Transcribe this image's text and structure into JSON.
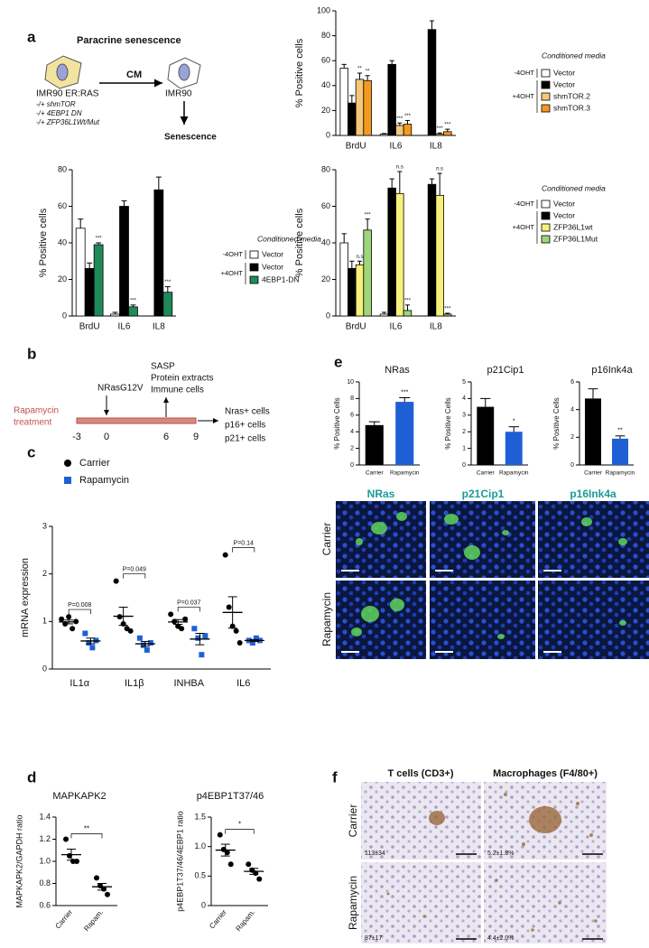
{
  "panel_labels": [
    "a",
    "b",
    "c",
    "d",
    "e",
    "f"
  ],
  "diagram_a": {
    "title": "Paracrine senescence",
    "source": "IMR90 ER:RAS",
    "conditions": [
      "-/+ shmTOR",
      "-/+ 4EBP1 DN",
      "-/+ ZFP36L1Wt/Mut"
    ],
    "arrow": "CM",
    "target": "IMR90",
    "outcome": "Senescence"
  },
  "timeline_b": {
    "treatment": [
      "Rapamycin",
      "treatment"
    ],
    "days": [
      -3,
      0,
      6,
      9
    ],
    "infection": "NRasG12V",
    "harvest": [
      "SASP",
      "Protein extracts",
      "Immune cells"
    ],
    "readouts": [
      "Nras+ cells",
      "p16+ cells",
      "p21+ cells"
    ]
  },
  "images_e": {
    "columns": [
      "NRas",
      "p21Cip1",
      "p16Ink4a"
    ],
    "rows": [
      "Carrier",
      "Rapamycin"
    ]
  },
  "images_f": {
    "columns": [
      "T cells (CD3+)",
      "Macrophages (F4/80+)"
    ],
    "rows": [
      "Carrier",
      "Rapamycin"
    ],
    "counts": [
      [
        "113±34",
        "5.2±1.8%"
      ],
      [
        "87±17",
        "4.4±2.0%"
      ]
    ]
  },
  "chart_data": [
    {
      "type": "bar",
      "ylabel": "% Positive cells",
      "categories": [
        "BrdU",
        "IL6",
        "IL8"
      ],
      "ylim": [
        0,
        100
      ],
      "yticks": [
        0,
        20,
        40,
        60,
        80,
        100
      ],
      "legend_title": "Conditioned media",
      "legend_groups": [
        "-4OHT",
        "+4OHT"
      ],
      "series": [
        {
          "name": "Vector",
          "color": "#ffffff",
          "values": [
            54,
            1,
            0
          ],
          "errors": [
            3,
            0.5,
            0
          ]
        },
        {
          "name": "Vector",
          "color": "#000000",
          "values": [
            26,
            57,
            85
          ],
          "errors": [
            6,
            3,
            7
          ]
        },
        {
          "name": "shmTOR.2",
          "color": "#f6c77a",
          "values": [
            45,
            8,
            1
          ],
          "errors": [
            5,
            2,
            1
          ],
          "significance": [
            "**",
            "***",
            "***"
          ]
        },
        {
          "name": "shmTOR.3",
          "color": "#f39a1e",
          "values": [
            44,
            9,
            3
          ],
          "errors": [
            4,
            3,
            2
          ],
          "significance": [
            "**",
            "***",
            "***"
          ]
        }
      ]
    },
    {
      "type": "bar",
      "ylabel": "% Positive cells",
      "categories": [
        "BrdU",
        "IL6",
        "IL8"
      ],
      "ylim": [
        0,
        80
      ],
      "yticks": [
        0,
        20,
        40,
        60,
        80
      ],
      "legend_title": "Conditioned media",
      "legend_groups": [
        "-4OHT",
        "+4OHT"
      ],
      "series": [
        {
          "name": "Vector",
          "color": "#ffffff",
          "values": [
            48,
            1,
            0
          ],
          "errors": [
            5,
            1,
            0
          ]
        },
        {
          "name": "Vector",
          "color": "#000000",
          "values": [
            26,
            60,
            69
          ],
          "errors": [
            3,
            3,
            7
          ]
        },
        {
          "name": "4EBP1-DN",
          "color": "#1e8a5a",
          "values": [
            39,
            5,
            13
          ],
          "errors": [
            1,
            1,
            3
          ],
          "significance": [
            "***",
            "***",
            "***"
          ]
        }
      ]
    },
    {
      "type": "bar",
      "ylabel": "% Positive cells",
      "categories": [
        "BrdU",
        "IL6",
        "IL8"
      ],
      "ylim": [
        0,
        80
      ],
      "yticks": [
        0,
        20,
        40,
        60,
        80
      ],
      "legend_title": "Conditioned media",
      "legend_groups": [
        "-4OHT",
        "+4OHT"
      ],
      "series": [
        {
          "name": "Vector",
          "color": "#ffffff",
          "values": [
            40,
            1,
            0
          ],
          "errors": [
            5,
            1,
            0
          ]
        },
        {
          "name": "Vector",
          "color": "#000000",
          "values": [
            26,
            70,
            72
          ],
          "errors": [
            4,
            5,
            3
          ]
        },
        {
          "name": "ZFP36L1wt",
          "color": "#f7f07a",
          "values": [
            28,
            67,
            66
          ],
          "errors": [
            2,
            12,
            12
          ],
          "significance": [
            "n.s",
            "n.s",
            "n.s"
          ]
        },
        {
          "name": "ZFP36L1Mut",
          "color": "#9ed67a",
          "values": [
            47,
            3,
            1
          ],
          "errors": [
            6,
            3,
            0.5
          ],
          "significance": [
            "***",
            "***",
            "***"
          ]
        }
      ]
    },
    {
      "type": "dot",
      "ylabel": "mRNA expression",
      "categories": [
        "IL1α",
        "IL1β",
        "INHBA",
        "IL6"
      ],
      "ylim": [
        0,
        3
      ],
      "yticks": [
        0,
        1,
        2,
        3
      ],
      "series": [
        {
          "name": "Carrier",
          "color": "#000000",
          "marker": "circle",
          "values": [
            [
              1.05,
              0.95,
              1.1,
              0.85,
              1.0
            ],
            [
              1.85,
              1.1,
              0.95,
              0.85,
              0.8
            ],
            [
              1.15,
              1.0,
              0.9,
              0.85,
              1.05
            ],
            [
              2.4,
              1.3,
              0.9,
              0.8,
              0.55
            ]
          ],
          "means": [
            0.99,
            1.11,
            0.99,
            1.19
          ],
          "sem": [
            0.04,
            0.19,
            0.05,
            0.33
          ]
        },
        {
          "name": "Rapamycin",
          "color": "#1f5fd6",
          "marker": "square",
          "values": [
            [
              0.75,
              0.55,
              0.45,
              0.6
            ],
            [
              0.65,
              0.5,
              0.4,
              0.55
            ],
            [
              0.85,
              0.65,
              0.3,
              0.7
            ],
            [
              0.6,
              0.55,
              0.65,
              0.6
            ]
          ],
          "means": [
            0.59,
            0.53,
            0.63,
            0.6
          ],
          "sem": [
            0.06,
            0.05,
            0.12,
            0.02
          ]
        }
      ],
      "annotations": [
        "P=0.008",
        "P=0.049",
        "P=0.037",
        "P=0.14"
      ]
    },
    {
      "type": "dot",
      "title": "MAPKAPK2",
      "ylabel": "MAPKAPK2/GAPDH ratio",
      "categories": [
        "Carrier",
        "Rapam."
      ],
      "ylim": [
        0.6,
        1.4
      ],
      "yticks": [
        0.6,
        0.8,
        {
          "value": 1,
          "label": "1.0"
        },
        1.2,
        1.4
      ],
      "series": [
        {
          "color": "#000000",
          "marker": "circle",
          "values": [
            [
              1.2,
              1.05,
              1.0,
              1.0
            ],
            [
              0.85,
              0.78,
              0.75,
              0.7
            ]
          ],
          "means": [
            1.06,
            0.77
          ],
          "sem": [
            0.05,
            0.03
          ]
        }
      ],
      "significance": "**"
    },
    {
      "type": "dot",
      "title": "p4EBP1T37/46",
      "ylabel": "p4EBP1T37/46/4EBP1 ratio",
      "categories": [
        "Carrier",
        "Rapam."
      ],
      "ylim": [
        0,
        1.5
      ],
      "yticks": [
        0,
        0.5,
        {
          "value": 1,
          "label": "1.0"
        },
        1.5
      ],
      "series": [
        {
          "color": "#000000",
          "marker": "circle",
          "values": [
            [
              1.2,
              0.95,
              0.9,
              0.7
            ],
            [
              0.7,
              0.6,
              0.55,
              0.45
            ]
          ],
          "means": [
            0.94,
            0.58
          ],
          "sem": [
            0.1,
            0.05
          ]
        }
      ],
      "significance": "*"
    },
    {
      "type": "bar",
      "title": "NRas",
      "ylabel": "% Positive Cells",
      "categories": [
        "Carrier",
        "Rapamycin"
      ],
      "ylim": [
        0,
        10
      ],
      "yticks": [
        0,
        2,
        4,
        6,
        8,
        10
      ],
      "values": [
        4.8,
        7.6
      ],
      "errors": [
        0.4,
        0.5
      ],
      "colors": [
        "#000000",
        "#1f5fd6"
      ],
      "significance": "***"
    },
    {
      "type": "bar",
      "title": "p21Cip1",
      "ylabel": "% Positive Cells",
      "categories": [
        "Carrier",
        "Rapamycin"
      ],
      "ylim": [
        0,
        5
      ],
      "yticks": [
        0,
        1,
        2,
        3,
        4,
        5
      ],
      "values": [
        3.5,
        2.0
      ],
      "errors": [
        0.5,
        0.3
      ],
      "colors": [
        "#000000",
        "#1f5fd6"
      ],
      "significance": "*"
    },
    {
      "type": "bar",
      "title": "p16Ink4a",
      "ylabel": "% Positive Cells",
      "categories": [
        "Carrier",
        "Rapamycin"
      ],
      "ylim": [
        0,
        6
      ],
      "yticks": [
        0,
        2,
        4,
        6
      ],
      "values": [
        4.8,
        1.9
      ],
      "errors": [
        0.7,
        0.2
      ],
      "colors": [
        "#000000",
        "#1f5fd6"
      ],
      "significance": "**"
    }
  ]
}
